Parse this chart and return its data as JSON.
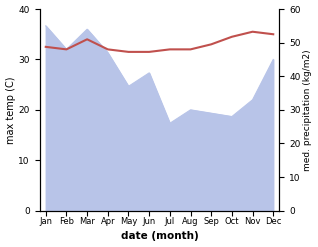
{
  "months": [
    "Jan",
    "Feb",
    "Mar",
    "Apr",
    "May",
    "Jun",
    "Jul",
    "Aug",
    "Sep",
    "Oct",
    "Nov",
    "Dec"
  ],
  "month_indices": [
    0,
    1,
    2,
    3,
    4,
    5,
    6,
    7,
    8,
    9,
    10,
    11
  ],
  "temp_max": [
    32.5,
    32.0,
    34.0,
    32.0,
    31.5,
    31.5,
    32.0,
    32.0,
    33.0,
    34.5,
    35.5,
    35.0
  ],
  "precip": [
    55.0,
    48.0,
    54.0,
    47.0,
    37.0,
    41.0,
    26.0,
    30.0,
    29.0,
    28.0,
    33.0,
    45.0
  ],
  "temp_color": "#c0504d",
  "precip_fill_color": "#b8c4e8",
  "temp_ylim": [
    0,
    40
  ],
  "precip_ylim": [
    0,
    60
  ],
  "temp_yticks": [
    0,
    10,
    20,
    30,
    40
  ],
  "precip_yticks": [
    0,
    10,
    20,
    30,
    40,
    50,
    60
  ],
  "xlabel": "date (month)",
  "ylabel_left": "max temp (C)",
  "ylabel_right": "med. precipitation (kg/m2)",
  "bg_color": "#ffffff"
}
